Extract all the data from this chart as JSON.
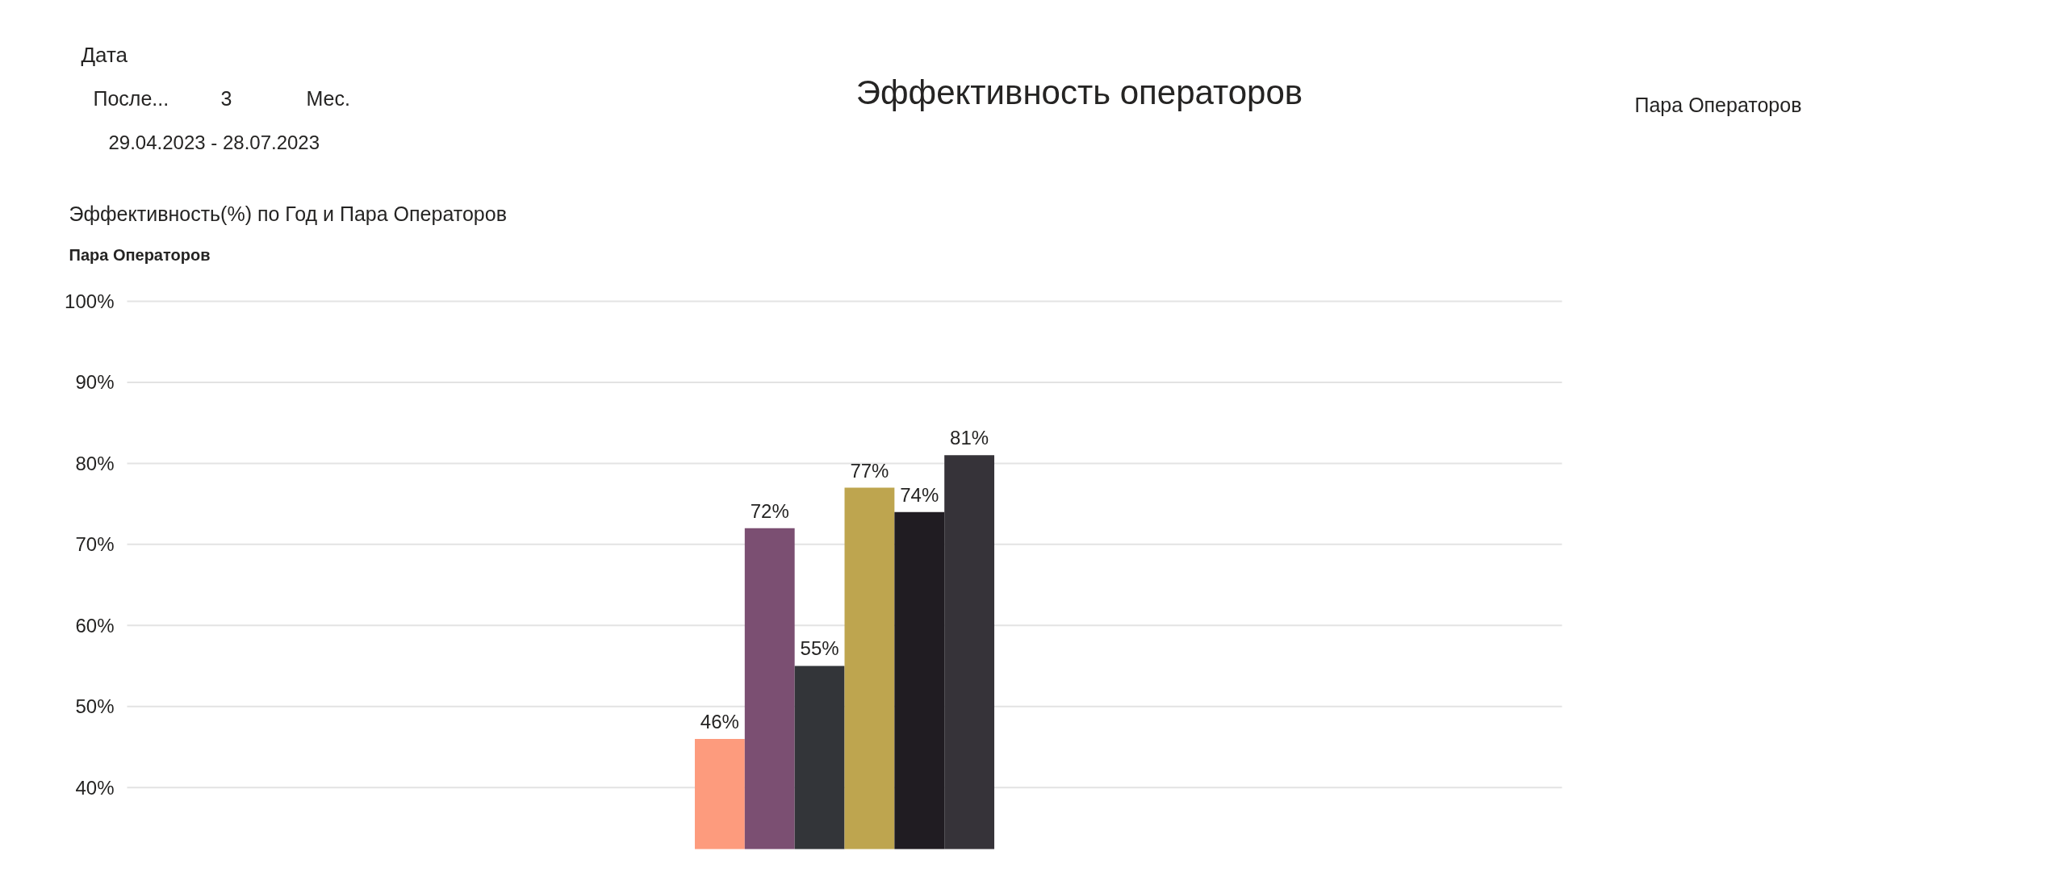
{
  "chart_data": {
    "type": "bar",
    "title": "Эффективность операторов",
    "subtitle": "Эффективность(%) по Год и Пара Операторов",
    "legend_title": "Пара Операторов",
    "categories": [
      null
    ],
    "series": [
      {
        "color": "#fd9b7d",
        "values": [
          46
        ],
        "value_labels": [
          "46%"
        ]
      },
      {
        "color": "#7b4f72",
        "values": [
          72
        ],
        "value_labels": [
          "72%"
        ]
      },
      {
        "color": "#333539",
        "values": [
          55
        ],
        "value_labels": [
          "55%"
        ]
      },
      {
        "color": "#bea54f",
        "values": [
          77
        ],
        "value_labels": [
          "77%"
        ]
      },
      {
        "color": "#201c22",
        "values": [
          74
        ],
        "value_labels": [
          "74%"
        ]
      },
      {
        "color": "#363339",
        "values": [
          81
        ],
        "value_labels": [
          "81%"
        ]
      }
    ],
    "ylim": [
      32.4,
      100
    ],
    "yticks": [
      {
        "value": 40,
        "label": "40%"
      },
      {
        "value": 50,
        "label": "50%"
      },
      {
        "value": 60,
        "label": "60%"
      },
      {
        "value": 70,
        "label": "70%"
      },
      {
        "value": 80,
        "label": "80%"
      },
      {
        "value": 90,
        "label": "90%"
      },
      {
        "value": 100,
        "label": "100%"
      }
    ],
    "grid": "y",
    "tick_labels": "y",
    "annotations": [
      "Дата",
      "После...",
      "3",
      "Мес.",
      "29.04.2023 - 28.07.2023",
      "Пара Операторов"
    ]
  }
}
